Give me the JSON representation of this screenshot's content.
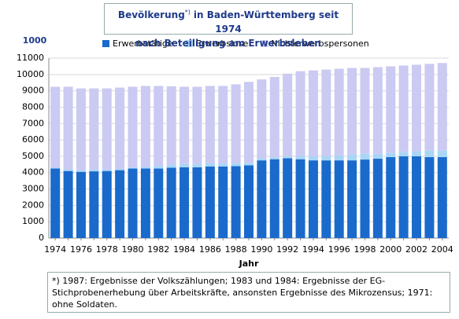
{
  "chart_data": {
    "type": "stacked-bar",
    "title_parts": [
      "Bevölkerung",
      "*)",
      "in Baden-Württemberg seit 1974"
    ],
    "subtitle": "nach Beteiligung am Erwerbsleben",
    "y_unit": "1000",
    "xlabel": "Jahr",
    "footnote": [
      "*) 1987: Ergebnisse der Volkszählungen; 1983 und 1984: Ergebnisse der EG-",
      "Stichprobenerhebung über Arbeitskräfte, ansonsten Ergebnisse des Mikrozensus; 1971:",
      "ohne Soldaten."
    ],
    "categories": [
      "1974",
      null,
      "1976",
      null,
      "1978",
      null,
      "1980",
      null,
      "1982",
      null,
      "1984",
      null,
      "1986",
      null,
      "1988",
      null,
      "1990",
      null,
      "1992",
      null,
      "1994",
      null,
      "1996",
      null,
      "1998",
      null,
      "2000",
      null,
      "2002",
      null,
      "2004"
    ],
    "series": [
      {
        "name": "Erwerbstätige",
        "color": "#1a6acc",
        "values": [
          4250,
          4100,
          4050,
          4080,
          4100,
          4150,
          4250,
          4250,
          4250,
          4300,
          4330,
          4330,
          4380,
          4380,
          4400,
          4450,
          4750,
          4820,
          4880,
          4820,
          4750,
          4750,
          4750,
          4750,
          4800,
          4850,
          4950,
          5000,
          5000,
          4950,
          4950
        ]
      },
      {
        "name": "Erwerbslose",
        "color": "#a8d6f7",
        "values": [
          50,
          100,
          100,
          100,
          100,
          80,
          60,
          100,
          150,
          200,
          200,
          200,
          200,
          180,
          180,
          150,
          120,
          100,
          120,
          200,
          250,
          250,
          300,
          350,
          350,
          300,
          250,
          250,
          300,
          400,
          400
        ]
      },
      {
        "name": "Nichterwerbspersonen",
        "color": "#cacaf2",
        "values": [
          4950,
          5050,
          5000,
          4970,
          4950,
          4970,
          4940,
          4950,
          4900,
          4780,
          4720,
          4720,
          4720,
          4740,
          4820,
          4950,
          4830,
          4930,
          5050,
          5180,
          5250,
          5300,
          5300,
          5300,
          5250,
          5300,
          5300,
          5300,
          5300,
          5300,
          5350
        ]
      }
    ],
    "ylim": [
      0,
      11000
    ],
    "yticks": [
      0,
      1000,
      2000,
      3000,
      4000,
      5000,
      6000,
      7000,
      8000,
      9000,
      10000,
      11000
    ],
    "grid": true,
    "legend": "top"
  }
}
